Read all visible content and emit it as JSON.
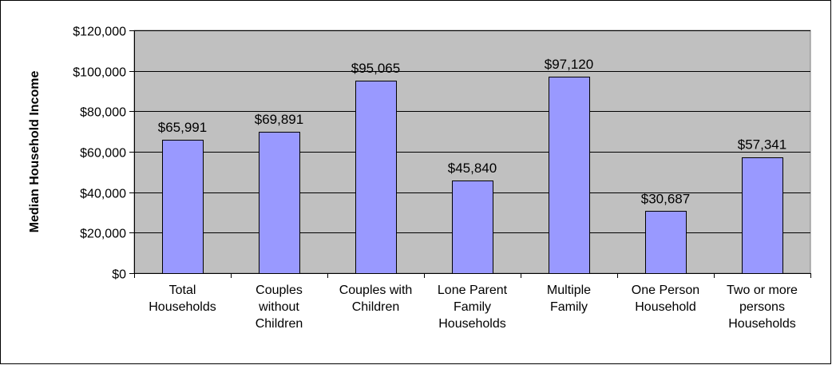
{
  "chart_data": {
    "type": "bar",
    "title": "",
    "xlabel": "",
    "ylabel": "Median Household Income",
    "ylim": [
      0,
      120000
    ],
    "yticks": [
      0,
      20000,
      40000,
      60000,
      80000,
      100000,
      120000
    ],
    "ytick_labels": [
      "$0",
      "$20,000",
      "$40,000",
      "$60,000",
      "$80,000",
      "$100,000",
      "$120,000"
    ],
    "categories": [
      [
        "Total",
        "Households"
      ],
      [
        "Couples",
        "without",
        "Children"
      ],
      [
        "Couples with",
        "Children"
      ],
      [
        "Lone Parent",
        "Family",
        "Households"
      ],
      [
        "Multiple",
        "Family"
      ],
      [
        "One Person",
        "Household"
      ],
      [
        "Two or more",
        "persons",
        "Households"
      ]
    ],
    "values": [
      65991,
      69891,
      95065,
      45840,
      97120,
      30687,
      57341
    ],
    "data_labels": [
      "$65,991",
      "$69,891",
      "$95,065",
      "$45,840",
      "$97,120",
      "$30,687",
      "$57,341"
    ],
    "grid": true,
    "legend": "none",
    "colors": {
      "bar": "#9999ff",
      "plot_background": "#c0c0c0",
      "frame": "#ffffff"
    }
  }
}
